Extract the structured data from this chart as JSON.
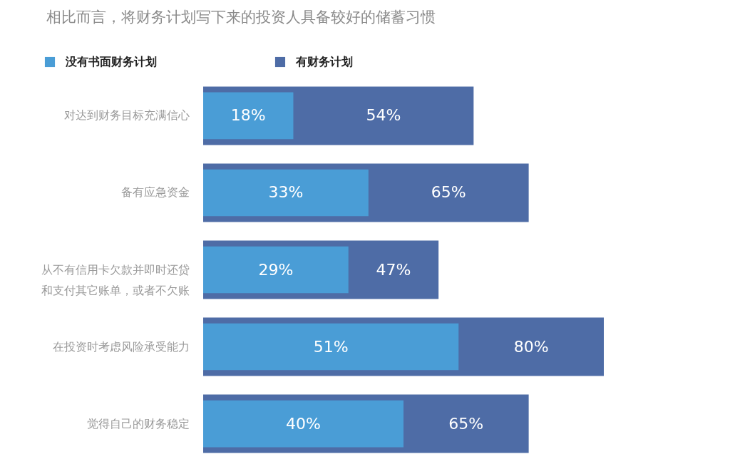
{
  "chart_data": {
    "type": "bar",
    "orientation": "horizontal",
    "title": "相比而言，将财务计划写下来的投资人具备较好的储蓄习惯",
    "categories": [
      "对达到财务目标充满信心",
      "备有应急资金",
      "从不有信用卡欠款并即时还贷和支付其它账单，或者不欠账",
      "在投资时考虑风险承受能力",
      "觉得自己的财务稳定"
    ],
    "series": [
      {
        "name": "没有书面财务计划",
        "color": "#4a9dd6",
        "values": [
          18,
          33,
          29,
          51,
          40
        ],
        "value_labels": [
          "18%",
          "33%",
          "29%",
          "51%",
          "40%"
        ]
      },
      {
        "name": "有财务计划",
        "color": "#4e6ca6",
        "values": [
          54,
          65,
          47,
          80,
          65
        ],
        "value_labels": [
          "54%",
          "65%",
          "47%",
          "80%",
          "65%"
        ]
      }
    ],
    "tick_labels": "y",
    "legend": "top left"
  }
}
